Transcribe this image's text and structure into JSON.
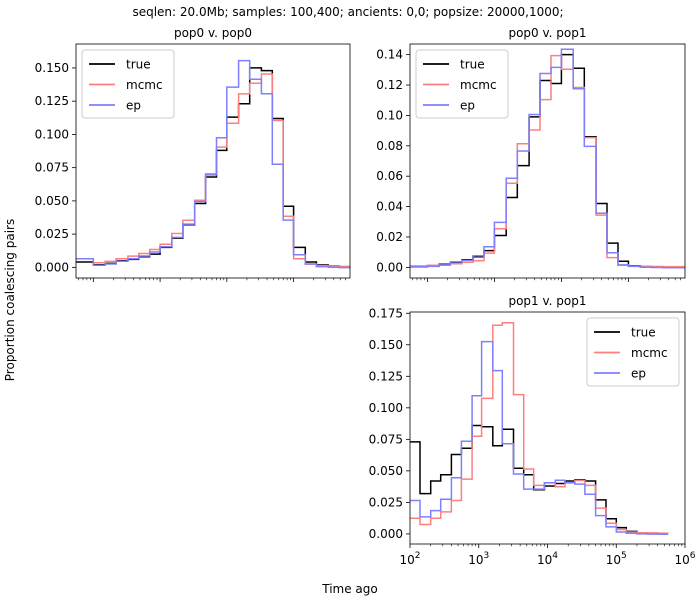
{
  "figure": {
    "suptitle": "seqlen: 20.0Mb; samples: 100,400; ancients: 0,0; popsize: 20000,1000;",
    "shared_ylabel": "Proportion coalescing pairs",
    "shared_xlabel": "Time ago",
    "legend_entries": [
      {
        "name": "true",
        "color": "#000000"
      },
      {
        "name": "mcmc",
        "color": "#ff7f7f"
      },
      {
        "name": "ep",
        "color": "#7f7fff"
      }
    ]
  },
  "chart_data": [
    {
      "type": "line",
      "step": true,
      "title": "pop0 v. pop0",
      "xscale": "log",
      "xlim": [
        55,
        700000
      ],
      "ylim": [
        -0.008,
        0.168
      ],
      "yticks": [
        "0.000",
        "0.025",
        "0.050",
        "0.075",
        "0.100",
        "0.125",
        "0.150"
      ],
      "xtick_labels_shown": false,
      "legend_loc": "upper left",
      "bin_edges": [
        55,
        100,
        150,
        220,
        330,
        480,
        700,
        1000,
        1500,
        2200,
        3300,
        4800,
        7000,
        10000,
        15000,
        22000,
        33000,
        48000,
        70000,
        100000,
        150000,
        220000,
        330000,
        480000,
        700000
      ],
      "series": [
        {
          "name": "true",
          "color": "#000000",
          "values": [
            0.004,
            0.002,
            0.003,
            0.005,
            0.006,
            0.008,
            0.01,
            0.015,
            0.022,
            0.032,
            0.048,
            0.068,
            0.088,
            0.113,
            0.123,
            0.15,
            0.148,
            0.112,
            0.046,
            0.015,
            0.004,
            0.002,
            0.001,
            0.0005
          ]
        },
        {
          "name": "mcmc",
          "color": "#ff7f7f",
          "values": [
            0.006,
            0.003,
            0.004,
            0.006,
            0.008,
            0.01,
            0.013,
            0.017,
            0.025,
            0.035,
            0.05,
            0.07,
            0.09,
            0.108,
            0.13,
            0.138,
            0.145,
            0.11,
            0.038,
            0.006,
            0.002,
            0.001,
            0.0005,
            0.0003
          ]
        },
        {
          "name": "ep",
          "color": "#7f7fff",
          "values": [
            0.007,
            0.002,
            0.003,
            0.005,
            0.007,
            0.009,
            0.012,
            0.016,
            0.023,
            0.033,
            0.05,
            0.07,
            0.098,
            0.136,
            0.156,
            0.142,
            0.131,
            0.078,
            0.036,
            0.01,
            0.003,
            0.001,
            0.0005,
            0.0003
          ]
        }
      ]
    },
    {
      "type": "line",
      "step": true,
      "title": "pop0 v. pop1",
      "xscale": "log",
      "xlim": [
        55,
        700000
      ],
      "ylim": [
        -0.007,
        0.147
      ],
      "yticks": [
        "0.00",
        "0.02",
        "0.04",
        "0.06",
        "0.08",
        "0.10",
        "0.12",
        "0.14"
      ],
      "xtick_labels_shown": false,
      "legend_loc": "upper left",
      "bin_edges": [
        55,
        100,
        150,
        220,
        330,
        480,
        700,
        1000,
        1500,
        2200,
        3300,
        4800,
        7000,
        10000,
        15000,
        22000,
        33000,
        48000,
        70000,
        100000,
        150000,
        220000,
        330000,
        480000,
        700000
      ],
      "series": [
        {
          "name": "true",
          "color": "#000000",
          "values": [
            0.0005,
            0.001,
            0.002,
            0.003,
            0.005,
            0.007,
            0.011,
            0.021,
            0.046,
            0.067,
            0.099,
            0.123,
            0.121,
            0.14,
            0.131,
            0.086,
            0.042,
            0.016,
            0.004,
            0.001,
            0.0005,
            0.0003,
            0.0002,
            0.0001
          ]
        },
        {
          "name": "mcmc",
          "color": "#ff7f7f",
          "values": [
            0.0005,
            0.001,
            0.001,
            0.002,
            0.003,
            0.004,
            0.009,
            0.025,
            0.055,
            0.081,
            0.09,
            0.11,
            0.139,
            0.13,
            0.118,
            0.085,
            0.034,
            0.006,
            0.001,
            0.0005,
            0.0003,
            0.0002,
            0.0001,
            0.0001
          ]
        },
        {
          "name": "ep",
          "color": "#7f7fff",
          "values": [
            0.001,
            0.001,
            0.002,
            0.004,
            0.005,
            0.008,
            0.014,
            0.03,
            0.059,
            0.077,
            0.101,
            0.128,
            0.132,
            0.144,
            0.118,
            0.08,
            0.036,
            0.01,
            0.002,
            0.001,
            0.0005,
            0.0003,
            0.0002,
            0.0001
          ]
        }
      ]
    },
    {
      "type": "line",
      "step": true,
      "title": "pop1 v. pop1",
      "xscale": "log",
      "xlim": [
        100,
        1000000
      ],
      "ylim": [
        -0.008,
        0.176
      ],
      "yticks": [
        "0.000",
        "0.025",
        "0.050",
        "0.075",
        "0.100",
        "0.125",
        "0.150",
        "0.175"
      ],
      "xtick_labels_shown": true,
      "xticks": [
        {
          "value": 100,
          "base": "10",
          "exp": "2"
        },
        {
          "value": 1000,
          "base": "10",
          "exp": "3"
        },
        {
          "value": 10000,
          "base": "10",
          "exp": "4"
        },
        {
          "value": 100000,
          "base": "10",
          "exp": "5"
        },
        {
          "value": 1000000,
          "base": "10",
          "exp": "6"
        }
      ],
      "legend_loc": "upper right",
      "bin_edges": [
        100,
        140,
        200,
        280,
        400,
        560,
        800,
        1100,
        1600,
        2200,
        3200,
        4500,
        6300,
        9000,
        13000,
        18000,
        25000,
        35000,
        50000,
        71000,
        100000,
        140000,
        200000,
        280000,
        400000,
        570000
      ],
      "series": [
        {
          "name": "true",
          "color": "#000000",
          "values": [
            0.073,
            0.032,
            0.042,
            0.047,
            0.063,
            0.068,
            0.086,
            0.085,
            0.07,
            0.083,
            0.052,
            0.047,
            0.035,
            0.038,
            0.04,
            0.042,
            0.043,
            0.042,
            0.027,
            0.012,
            0.005,
            0.002,
            0.001,
            0.0005,
            0.0003
          ]
        },
        {
          "name": "mcmc",
          "color": "#ff7f7f",
          "values": [
            0.012,
            0.007,
            0.012,
            0.017,
            0.026,
            0.043,
            0.077,
            0.107,
            0.165,
            0.167,
            0.11,
            0.051,
            0.038,
            0.04,
            0.037,
            0.04,
            0.042,
            0.038,
            0.02,
            0.008,
            0.003,
            0.001,
            0.0005,
            0.0003,
            0.0002
          ]
        },
        {
          "name": "ep",
          "color": "#7f7fff",
          "values": [
            0.027,
            0.014,
            0.019,
            0.028,
            0.045,
            0.074,
            0.11,
            0.153,
            0.13,
            0.072,
            0.048,
            0.036,
            0.036,
            0.041,
            0.043,
            0.041,
            0.04,
            0.032,
            0.015,
            0.006,
            0.002,
            0.001,
            0.0005,
            0.0003,
            0.0002
          ]
        }
      ]
    }
  ]
}
